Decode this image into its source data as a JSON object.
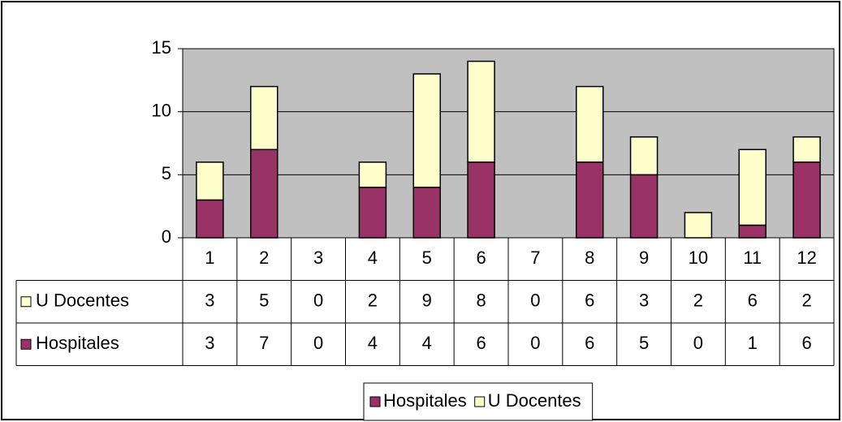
{
  "chart_data": {
    "type": "bar",
    "stacked": true,
    "categories": [
      "1",
      "2",
      "3",
      "4",
      "5",
      "6",
      "7",
      "8",
      "9",
      "10",
      "11",
      "12"
    ],
    "series": [
      {
        "name": "Hospitales",
        "color": "#993366",
        "values": [
          3,
          7,
          0,
          4,
          4,
          6,
          0,
          6,
          5,
          0,
          1,
          6
        ]
      },
      {
        "name": "U Docentes",
        "color": "#ffffcc",
        "values": [
          3,
          5,
          0,
          2,
          9,
          8,
          0,
          6,
          3,
          2,
          6,
          2
        ]
      }
    ],
    "ylim": [
      0,
      15
    ],
    "yticks": [
      0,
      5,
      10,
      15
    ],
    "grid": true,
    "legend": "bottom",
    "data_table": true
  }
}
